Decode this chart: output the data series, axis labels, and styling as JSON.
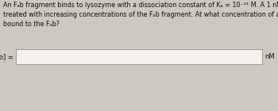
{
  "line1": "An Fₐb fragment binds to lysozyme with a dissociation constant of Kₐ = 10⁻¹¹ M. A 1 nM (10⁻⁹ M) solution of lysozyme is",
  "line2": "treated with increasing concentrations of the Fₐb fragment. At what concentration of added Fₐb will half of the lysozyme be",
  "line3": "bound to the Fₐb?",
  "label": "[Fₐb] =",
  "unit": "nM",
  "bg_color": "#cdc8c0",
  "box_color": "#f5f0ea",
  "box_border_color": "#999999",
  "text_color": "#111111",
  "font_size_para": 5.8,
  "font_size_label": 6.0,
  "font_size_unit": 6.0
}
